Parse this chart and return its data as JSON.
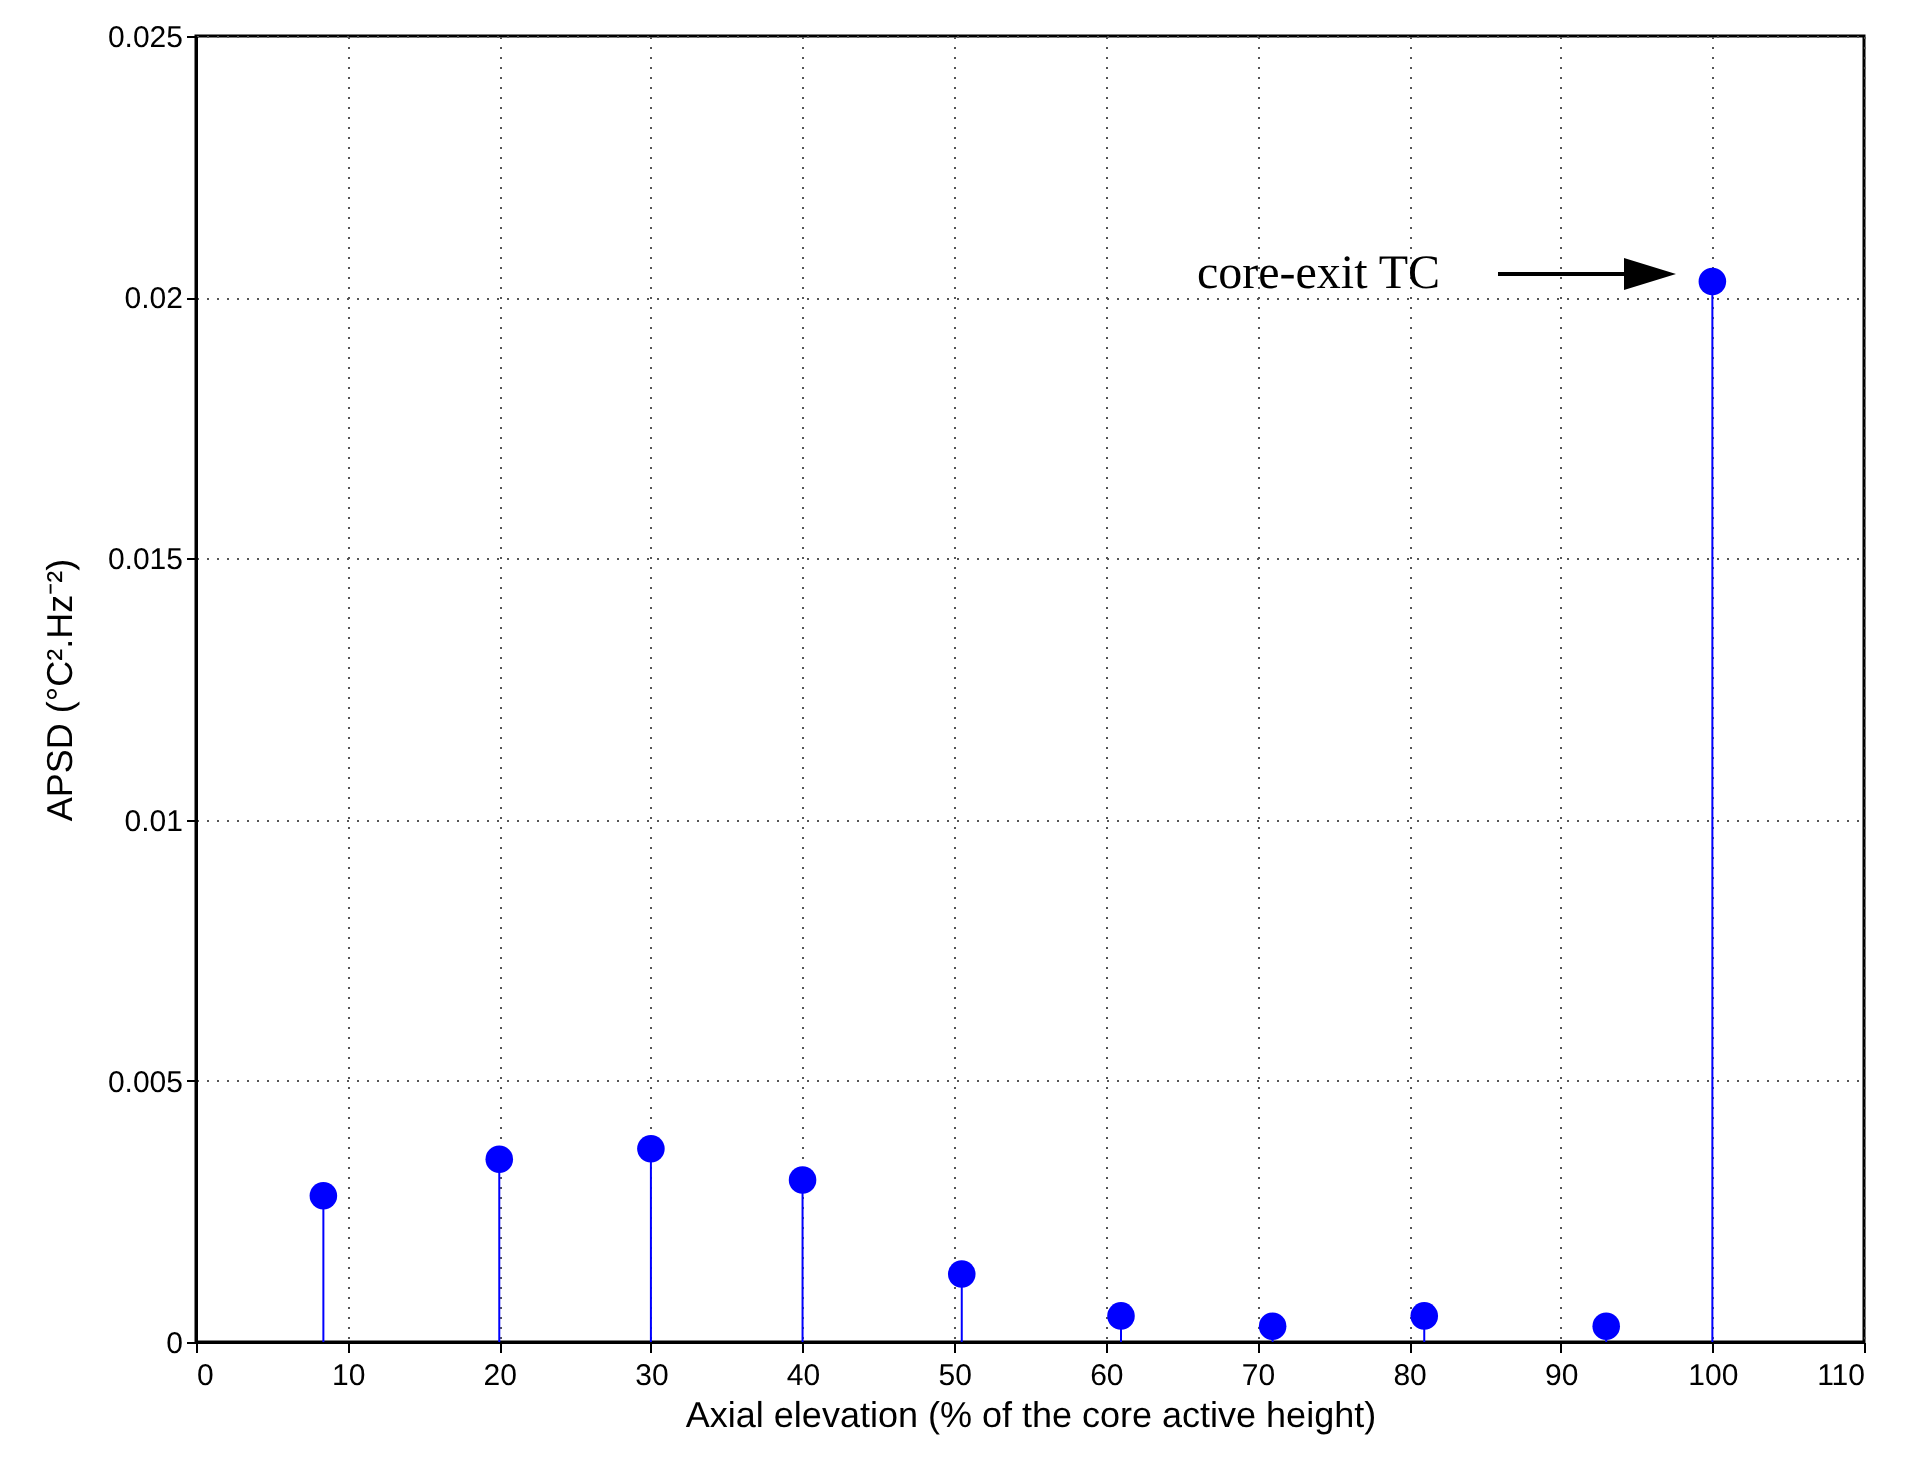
{
  "chart_data": {
    "type": "lollipop",
    "xlabel": "Axial elevation (% of the core active height)",
    "ylabel": "APSD (°C².Hz⁻²)",
    "x": [
      8.4,
      20,
      30,
      40,
      50.5,
      61,
      71,
      81,
      93,
      100
    ],
    "values": [
      0.0028,
      0.0035,
      0.0037,
      0.0031,
      0.0013,
      0.0005,
      0.0003,
      0.0005,
      0.0003,
      0.0203
    ],
    "color": "#0000ff",
    "xlim": [
      0,
      110
    ],
    "xticks": [
      0,
      10,
      20,
      30,
      40,
      50,
      60,
      70,
      80,
      90,
      100,
      110
    ],
    "ylim": [
      0,
      0.025
    ],
    "yticks": [
      0,
      0.005,
      0.01,
      0.015,
      0.02,
      0.025
    ],
    "grid": true,
    "marker": "circle",
    "annotations": [
      "core-exit TC"
    ]
  }
}
